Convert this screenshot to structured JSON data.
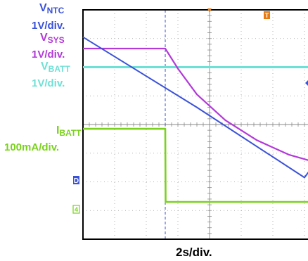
{
  "chart_data": {
    "type": "line",
    "title": "",
    "xlabel": "2s/div.",
    "channels": [
      {
        "name": "V_NTC",
        "scale": "1V/div.",
        "color": "#3a52d8"
      },
      {
        "name": "V_SYS",
        "scale": "1V/div.",
        "color": "#b23ad8"
      },
      {
        "name": "V_BATT",
        "scale": "1V/div.",
        "color": "#6fe0d6"
      },
      {
        "name": "I_BATT",
        "scale": "100mA/div.",
        "color": "#7ad21c"
      }
    ],
    "grid": {
      "x_divisions": 8,
      "y_divisions": 8,
      "time_per_div_s": 2
    },
    "series": [
      {
        "name": "V_NTC",
        "x": [
          0.0,
          3.6,
          7.0,
          10.4
        ],
        "y": [
          7.05,
          4.6,
          2.15,
          7.3
        ]
      },
      {
        "name": "V_SYS",
        "x": [
          0.0,
          2.6,
          3.0,
          3.6,
          4.5,
          5.5,
          6.5,
          7.3,
          7.31,
          10.4
        ],
        "y": [
          6.65,
          6.65,
          5.95,
          5.05,
          4.15,
          3.45,
          2.95,
          2.7,
          6.65,
          6.65
        ]
      },
      {
        "name": "V_BATT",
        "x": [
          0.0,
          10.4
        ],
        "y": [
          6.0,
          6.0
        ]
      },
      {
        "name": "I_BATT",
        "x": [
          0.0,
          2.6,
          2.61,
          7.3,
          7.31,
          10.4
        ],
        "y": [
          3.85,
          3.85,
          1.3,
          1.3,
          3.85,
          3.85
        ]
      }
    ],
    "markers": [
      {
        "label": "D",
        "color": "#3a52d8"
      },
      {
        "label": "4",
        "color": "#7ad21c"
      },
      {
        "label": "T",
        "color": "#e87a10"
      }
    ]
  },
  "labels": {
    "ntc_name": "V",
    "ntc_sub": "NTC",
    "ntc_scale": "1V/div.",
    "sys_name": "V",
    "sys_sub": "SYS",
    "sys_scale": "1V/div.",
    "batt_name": "V",
    "batt_sub": "BATT",
    "batt_scale": "1V/div.",
    "ibatt_name": "I",
    "ibatt_sub": "BATT",
    "ibatt_scale": "100mA/div."
  }
}
